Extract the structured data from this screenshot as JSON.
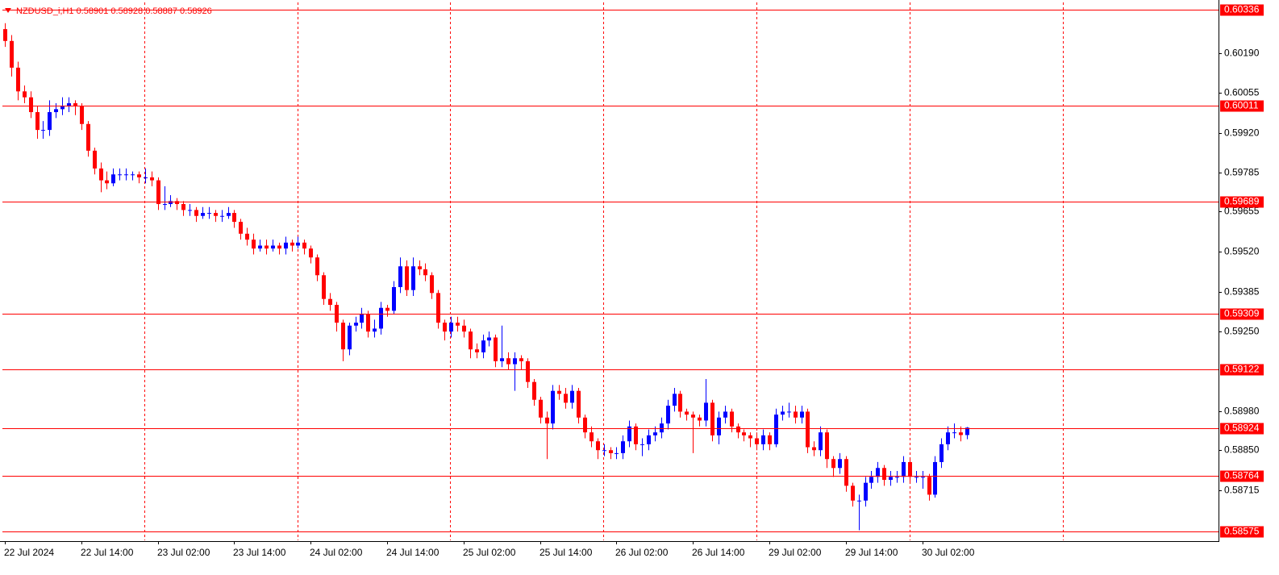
{
  "chart_data": {
    "type": "candlestick",
    "title": "NZDUSD_i,H1  0.58901 0.58928 0.58887 0.58926",
    "categories": [
      "22 Jul 2024",
      null,
      null,
      null,
      null,
      null,
      null,
      null,
      null,
      null,
      null,
      null,
      "22 Jul 14:00",
      null,
      null,
      null,
      null,
      null,
      null,
      null,
      null,
      null,
      null,
      null,
      "23 Jul 02:00",
      null,
      null,
      null,
      null,
      null,
      null,
      null,
      null,
      null,
      null,
      null,
      "23 Jul 14:00",
      null,
      null,
      null,
      null,
      null,
      null,
      null,
      null,
      null,
      null,
      null,
      "24 Jul 02:00",
      null,
      null,
      null,
      null,
      null,
      null,
      null,
      null,
      null,
      null,
      null,
      "24 Jul 14:00",
      null,
      null,
      null,
      null,
      null,
      null,
      null,
      null,
      null,
      null,
      null,
      "25 Jul 02:00",
      null,
      null,
      null,
      null,
      null,
      null,
      null,
      null,
      null,
      null,
      null,
      "25 Jul 14:00",
      null,
      null,
      null,
      null,
      null,
      null,
      null,
      null,
      null,
      null,
      null,
      "26 Jul 02:00",
      null,
      null,
      null,
      null,
      null,
      null,
      null,
      null,
      null,
      null,
      null,
      "26 Jul 14:00",
      null,
      null,
      null,
      null,
      null,
      null,
      null,
      null,
      null,
      null,
      null,
      "29 Jul 02:00",
      null,
      null,
      null,
      null,
      null,
      null,
      null,
      null,
      null,
      null,
      null,
      "29 Jul 14:00",
      null,
      null,
      null,
      null,
      null,
      null,
      null,
      null,
      null,
      null,
      null,
      "30 Jul 02:00",
      null,
      null,
      null,
      null,
      null,
      null,
      null
    ],
    "open": [
      0.6027,
      0.6023,
      0.6014,
      0.6006,
      0.6004,
      0.5999,
      0.5993,
      0.5993,
      0.5999,
      0.6,
      0.6001,
      0.6002,
      0.6001,
      0.5995,
      0.5986,
      0.598,
      0.5976,
      0.5975,
      0.5978,
      0.5978,
      0.5978,
      0.5978,
      0.5977,
      0.5977,
      0.5976,
      0.5968,
      0.5968,
      0.5969,
      0.5968,
      0.5966,
      0.5966,
      0.5964,
      0.5965,
      0.5965,
      0.5964,
      0.5964,
      0.5965,
      0.5962,
      0.5958,
      0.5956,
      0.5953,
      0.5954,
      0.5953,
      0.5954,
      0.5953,
      0.5955,
      0.5954,
      0.5955,
      0.5953,
      0.595,
      0.5944,
      0.5936,
      0.5934,
      0.5928,
      0.5919,
      0.5927,
      0.5928,
      0.5931,
      0.5925,
      0.5926,
      0.5933,
      0.5932,
      0.594,
      0.5947,
      0.5939,
      0.5947,
      0.5946,
      0.5944,
      0.5938,
      0.5928,
      0.5925,
      0.5928,
      0.5927,
      0.5925,
      0.5919,
      0.5918,
      0.5922,
      0.5923,
      0.5915,
      0.5916,
      0.5914,
      0.5916,
      0.5915,
      0.5908,
      0.5902,
      0.5896,
      0.5894,
      0.5905,
      0.5904,
      0.5901,
      0.5905,
      0.5896,
      0.5891,
      0.5888,
      0.5885,
      0.5885,
      0.5884,
      0.5884,
      0.5888,
      0.5893,
      0.5887,
      0.5887,
      0.589,
      0.5891,
      0.5894,
      0.59,
      0.5904,
      0.5898,
      0.5897,
      0.5896,
      0.5895,
      0.5901,
      0.589,
      0.5896,
      0.5898,
      0.5893,
      0.5891,
      0.589,
      0.5889,
      0.5887,
      0.589,
      0.5887,
      0.5897,
      0.5898,
      0.5898,
      0.5896,
      0.5898,
      0.5886,
      0.5885,
      0.5891,
      0.5882,
      0.5879,
      0.5882,
      0.5873,
      0.5868,
      0.5868,
      0.5874,
      0.5876,
      0.5879,
      0.5875,
      0.5876,
      0.5876,
      0.5881,
      0.5876,
      0.5876,
      0.5876,
      0.587,
      0.5881,
      0.5887,
      0.5891,
      0.5891,
      0.58901
    ],
    "high": [
      0.6029,
      0.6025,
      0.6016,
      0.6008,
      0.6006,
      0.6001,
      0.5996,
      0.6003,
      0.6002,
      0.6004,
      0.6004,
      0.6003,
      0.6002,
      0.5996,
      0.5987,
      0.5982,
      0.5979,
      0.598,
      0.598,
      0.598,
      0.5979,
      0.5979,
      0.598,
      0.5979,
      0.5977,
      0.5974,
      0.5971,
      0.597,
      0.5969,
      0.5968,
      0.5967,
      0.5967,
      0.5967,
      0.5966,
      0.5966,
      0.5967,
      0.5966,
      0.5963,
      0.596,
      0.5958,
      0.5956,
      0.5956,
      0.5956,
      0.5955,
      0.5957,
      0.5956,
      0.5957,
      0.5956,
      0.5954,
      0.5951,
      0.5945,
      0.5938,
      0.5935,
      0.5929,
      0.5928,
      0.593,
      0.5933,
      0.5932,
      0.5929,
      0.5935,
      0.5934,
      0.5942,
      0.595,
      0.5949,
      0.595,
      0.5949,
      0.5948,
      0.5945,
      0.5939,
      0.5929,
      0.593,
      0.593,
      0.5929,
      0.5926,
      0.5921,
      0.5924,
      0.5925,
      0.5924,
      0.5927,
      0.5918,
      0.5918,
      0.5917,
      0.5916,
      0.5909,
      0.5903,
      0.5898,
      0.5907,
      0.5907,
      0.5906,
      0.5907,
      0.5906,
      0.5897,
      0.5893,
      0.5889,
      0.5887,
      0.5886,
      0.5886,
      0.589,
      0.5895,
      0.5894,
      0.5889,
      0.5892,
      0.5893,
      0.5896,
      0.5902,
      0.5906,
      0.5905,
      0.5899,
      0.5898,
      0.5897,
      0.5909,
      0.5902,
      0.5898,
      0.59,
      0.5899,
      0.5894,
      0.5892,
      0.5891,
      0.5891,
      0.5892,
      0.5891,
      0.5899,
      0.59,
      0.5901,
      0.59,
      0.59,
      0.5899,
      0.5888,
      0.5893,
      0.5892,
      0.5883,
      0.5884,
      0.5883,
      0.5874,
      0.587,
      0.5876,
      0.5878,
      0.5881,
      0.588,
      0.5878,
      0.5878,
      0.5883,
      0.5882,
      0.5878,
      0.5878,
      0.5877,
      0.5883,
      0.5889,
      0.5893,
      0.5894,
      0.5893,
      0.58928
    ],
    "low": [
      0.6021,
      0.6011,
      0.6003,
      0.6002,
      0.5997,
      0.599,
      0.599,
      0.5991,
      0.5997,
      0.5998,
      0.5999,
      0.5998,
      0.5993,
      0.5984,
      0.5978,
      0.5972,
      0.5973,
      0.5974,
      0.5976,
      0.5976,
      0.5976,
      0.5975,
      0.5975,
      0.5974,
      0.5966,
      0.5966,
      0.5967,
      0.5966,
      0.5964,
      0.5964,
      0.5962,
      0.5963,
      0.5963,
      0.5962,
      0.5962,
      0.5963,
      0.596,
      0.5956,
      0.5954,
      0.5951,
      0.5952,
      0.5951,
      0.5952,
      0.5951,
      0.5951,
      0.5952,
      0.5953,
      0.5951,
      0.5948,
      0.5942,
      0.5934,
      0.5932,
      0.5925,
      0.5915,
      0.5917,
      0.5925,
      0.5926,
      0.5923,
      0.5923,
      0.5924,
      0.593,
      0.5931,
      0.5938,
      0.5937,
      0.5937,
      0.5944,
      0.5942,
      0.5936,
      0.5926,
      0.5922,
      0.5923,
      0.5925,
      0.5923,
      0.5916,
      0.5916,
      0.5916,
      0.592,
      0.5913,
      0.5913,
      0.5912,
      0.5905,
      0.5912,
      0.5906,
      0.59,
      0.5894,
      0.5882,
      0.5892,
      0.5902,
      0.5899,
      0.5899,
      0.5894,
      0.5889,
      0.5886,
      0.5882,
      0.5883,
      0.5882,
      0.5882,
      0.5882,
      0.5886,
      0.5885,
      0.5883,
      0.5885,
      0.5888,
      0.5889,
      0.5892,
      0.5898,
      0.5896,
      0.5895,
      0.5884,
      0.5893,
      0.5893,
      0.5888,
      0.5887,
      0.5894,
      0.5891,
      0.5889,
      0.5888,
      0.5886,
      0.5885,
      0.5885,
      0.5885,
      0.5886,
      0.5895,
      0.5896,
      0.5894,
      0.5894,
      0.5884,
      0.5883,
      0.5883,
      0.5879,
      0.5876,
      0.5877,
      0.5871,
      0.5866,
      0.5858,
      0.5866,
      0.5872,
      0.5874,
      0.5873,
      0.5873,
      0.5874,
      0.5874,
      0.5874,
      0.5874,
      0.5872,
      0.5868,
      0.5869,
      0.5879,
      0.5885,
      0.5889,
      0.5888,
      0.58887
    ],
    "close": [
      0.6023,
      0.6014,
      0.6006,
      0.6004,
      0.5999,
      0.5993,
      0.5993,
      0.5999,
      0.6,
      0.6001,
      0.6002,
      0.6001,
      0.5995,
      0.5986,
      0.598,
      0.5976,
      0.5975,
      0.5978,
      0.5978,
      0.5978,
      0.5978,
      0.5977,
      0.5977,
      0.5976,
      0.5968,
      0.5968,
      0.5969,
      0.5968,
      0.5966,
      0.5966,
      0.5964,
      0.5965,
      0.5965,
      0.5964,
      0.5964,
      0.5965,
      0.5962,
      0.5958,
      0.5956,
      0.5953,
      0.5954,
      0.5953,
      0.5954,
      0.5953,
      0.5955,
      0.5954,
      0.5955,
      0.5953,
      0.595,
      0.5944,
      0.5936,
      0.5934,
      0.5928,
      0.5919,
      0.5927,
      0.5928,
      0.5931,
      0.5925,
      0.5926,
      0.5933,
      0.5932,
      0.594,
      0.5947,
      0.5939,
      0.5947,
      0.5946,
      0.5944,
      0.5938,
      0.5928,
      0.5925,
      0.5928,
      0.5927,
      0.5925,
      0.5919,
      0.5918,
      0.5922,
      0.5923,
      0.5915,
      0.5916,
      0.5914,
      0.5916,
      0.5915,
      0.5908,
      0.5902,
      0.5896,
      0.5894,
      0.5905,
      0.5904,
      0.5901,
      0.5905,
      0.5896,
      0.5891,
      0.5888,
      0.5885,
      0.5885,
      0.5884,
      0.5884,
      0.5888,
      0.5893,
      0.5887,
      0.5887,
      0.589,
      0.5891,
      0.5894,
      0.59,
      0.5904,
      0.5898,
      0.5897,
      0.5896,
      0.5895,
      0.5901,
      0.589,
      0.5896,
      0.5898,
      0.5893,
      0.5891,
      0.589,
      0.5889,
      0.5887,
      0.589,
      0.5887,
      0.5897,
      0.5898,
      0.5898,
      0.5896,
      0.5898,
      0.5886,
      0.5885,
      0.5891,
      0.5882,
      0.5879,
      0.5882,
      0.5873,
      0.5868,
      0.5868,
      0.5874,
      0.5876,
      0.5879,
      0.5875,
      0.5876,
      0.5876,
      0.5881,
      0.5876,
      0.5876,
      0.5876,
      0.587,
      0.5881,
      0.5887,
      0.5891,
      0.5891,
      0.58901,
      0.58926
    ],
    "up_color": "#0000ff",
    "down_color": "#ff0000",
    "ylim": [
      0.58546,
      0.6036
    ],
    "yticks": [
      {
        "value": 0.6019,
        "label": "0.60190"
      },
      0.60055,
      {
        "value": 0.5992,
        "label": "0.59920"
      },
      0.59785,
      0.59655,
      {
        "value": 0.5952,
        "label": "0.59520"
      },
      0.59385,
      {
        "value": 0.5925,
        "label": "0.59250"
      },
      {
        "value": 0.5898,
        "label": "0.58980"
      },
      {
        "value": 0.5885,
        "label": "0.58850"
      },
      0.58715
    ],
    "levels": [
      0.60336,
      0.60011,
      0.59689,
      0.59309,
      0.59122,
      0.58924,
      0.58764,
      0.58575
    ],
    "level_color": "#ff0000"
  }
}
